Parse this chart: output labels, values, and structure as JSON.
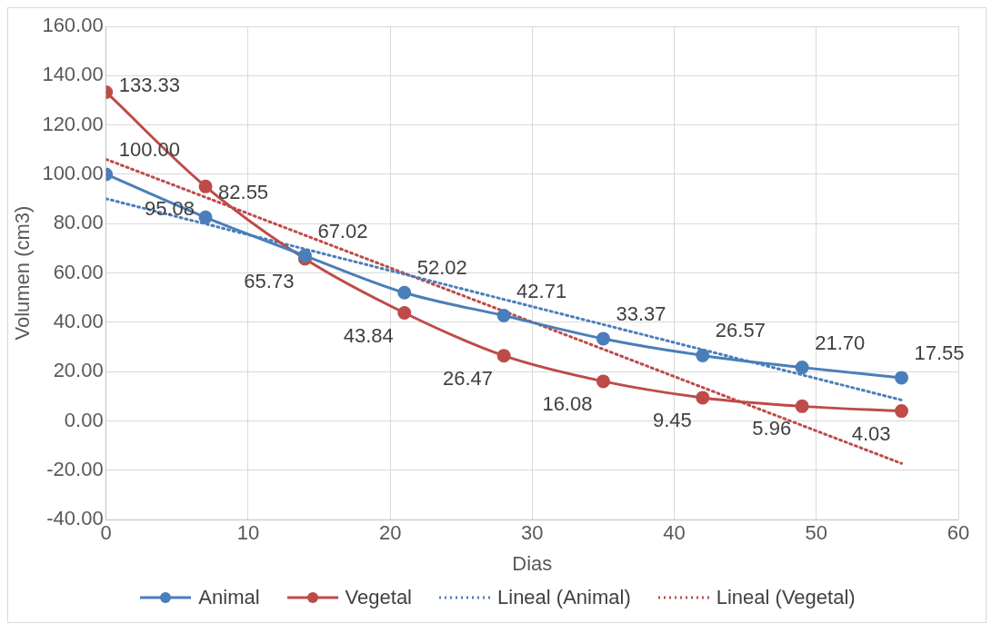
{
  "chart_data": {
    "type": "line",
    "xlabel": "Dias",
    "ylabel": "Volumen (cm3)",
    "xlim": [
      0,
      60
    ],
    "xticks": [
      0,
      10,
      20,
      30,
      40,
      50,
      60
    ],
    "ylim": [
      -40,
      160
    ],
    "yticks": [
      {
        "value": -40,
        "label": "-40.00"
      },
      {
        "value": -20,
        "label": "-20.00"
      },
      {
        "value": 0,
        "label": "0.00"
      },
      {
        "value": 20,
        "label": "20.00"
      },
      {
        "value": 40,
        "label": "40.00"
      },
      {
        "value": 60,
        "label": "60.00"
      },
      {
        "value": 80,
        "label": "80.00"
      },
      {
        "value": 100,
        "label": "100.00"
      },
      {
        "value": 120,
        "label": "120.00"
      },
      {
        "value": 140,
        "label": "140.00"
      },
      {
        "value": 160,
        "label": "160.00"
      }
    ],
    "x": [
      0,
      7,
      14,
      21,
      28,
      35,
      42,
      49,
      56
    ],
    "grid": true,
    "legend": "bottom",
    "series": [
      {
        "name": "Animal",
        "color": "#4a7ebb",
        "marker": "circle",
        "line_style": "solid",
        "values": [
          100,
          82.55,
          67.02,
          52.02,
          42.71,
          33.37,
          26.57,
          21.7,
          17.55
        ],
        "value_labels": [
          "100.00",
          "82.55",
          "67.02",
          "52.02",
          "42.71",
          "33.37",
          "26.57",
          "21.70",
          "17.55"
        ]
      },
      {
        "name": "Vegetal",
        "color": "#be4b48",
        "marker": "circle",
        "line_style": "solid",
        "values": [
          133.33,
          95.08,
          65.73,
          43.84,
          26.47,
          16.08,
          9.45,
          5.96,
          4.03
        ],
        "value_labels": [
          "133.33",
          "95.08",
          "65.73",
          "43.84",
          "26.47",
          "16.08",
          "9.45",
          "5.96",
          "4.03"
        ]
      },
      {
        "name": "Lineal (Animal)",
        "type": "line",
        "color": "#4a7ebb",
        "marker": "none",
        "line_style": "dotted",
        "values": [
          90.1,
          79.9,
          69.7,
          59.5,
          49.3,
          39.1,
          28.9,
          18.7,
          8.5
        ]
      },
      {
        "name": "Lineal (Vegetal)",
        "type": "line",
        "color": "#be4b48",
        "marker": "none",
        "line_style": "dotted",
        "values": [
          106.1,
          90.7,
          75.3,
          59.9,
          44.5,
          29.1,
          13.6,
          -1.8,
          -17.2
        ]
      }
    ]
  }
}
